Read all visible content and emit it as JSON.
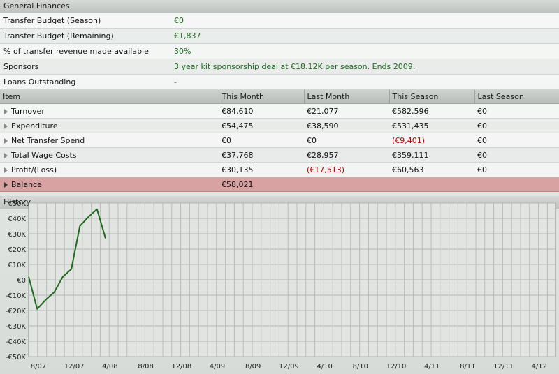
{
  "general": {
    "title": "General Finances",
    "rows": [
      {
        "label": "Transfer Budget (Season)",
        "value": "€0"
      },
      {
        "label": "Transfer Budget (Remaining)",
        "value": "€1,837"
      },
      {
        "label": "% of transfer revenue made available",
        "value": "30%"
      },
      {
        "label": "Sponsors",
        "value": "3 year kit sponsorship deal at €18.12K per season. Ends 2009."
      },
      {
        "label": "Loans Outstanding",
        "value": "-"
      }
    ]
  },
  "table": {
    "headers": [
      "Item",
      "This Month",
      "Last Month",
      "This Season",
      "Last Season"
    ],
    "rows": [
      {
        "item": "Turnover",
        "this_month": "€84,610",
        "last_month": "€21,077",
        "this_season": "€582,596",
        "last_season": "€0"
      },
      {
        "item": "Expenditure",
        "this_month": "€54,475",
        "last_month": "€38,590",
        "this_season": "€531,435",
        "last_season": "€0"
      },
      {
        "item": "Net Transfer Spend",
        "this_month": "€0",
        "last_month": "€0",
        "this_season": "(€9,401)",
        "last_season": "€0"
      },
      {
        "item": "Total Wage Costs",
        "this_month": "€37,768",
        "last_month": "€28,957",
        "this_season": "€359,111",
        "last_season": "€0"
      },
      {
        "item": "Profit/(Loss)",
        "this_month": "€30,135",
        "last_month": "(€17,513)",
        "this_season": "€60,563",
        "last_season": "€0"
      }
    ],
    "balance": {
      "item": "Balance",
      "this_month": "€58,021"
    }
  },
  "history": {
    "title": "History"
  },
  "colors": {
    "line": "#1e6b1e",
    "positive_text": "#1d6b1d",
    "negative_text": "#c00000",
    "balance_row": "#d9a2a2"
  },
  "chart_data": {
    "type": "line",
    "ylim": [
      -50000,
      50000
    ],
    "yticks": [
      -50000,
      -40000,
      -30000,
      -20000,
      -10000,
      0,
      10000,
      20000,
      30000,
      40000,
      50000
    ],
    "ytick_labels": [
      "-€50K",
      "-€40K",
      "-€30K",
      "-€20K",
      "-€10K",
      "€0",
      "€10K",
      "€20K",
      "€30K",
      "€40K",
      "€50K"
    ],
    "xtick_labels": [
      "8/07",
      "12/07",
      "4/08",
      "8/08",
      "12/08",
      "4/09",
      "8/09",
      "12/09",
      "4/10",
      "8/10",
      "12/10",
      "4/11",
      "8/11",
      "12/11",
      "4/12"
    ],
    "grid": true,
    "series": [
      {
        "values": [
          2000,
          -19000,
          -13000,
          -8000,
          2000,
          7000,
          35000,
          41000,
          46000,
          27000
        ]
      }
    ]
  }
}
